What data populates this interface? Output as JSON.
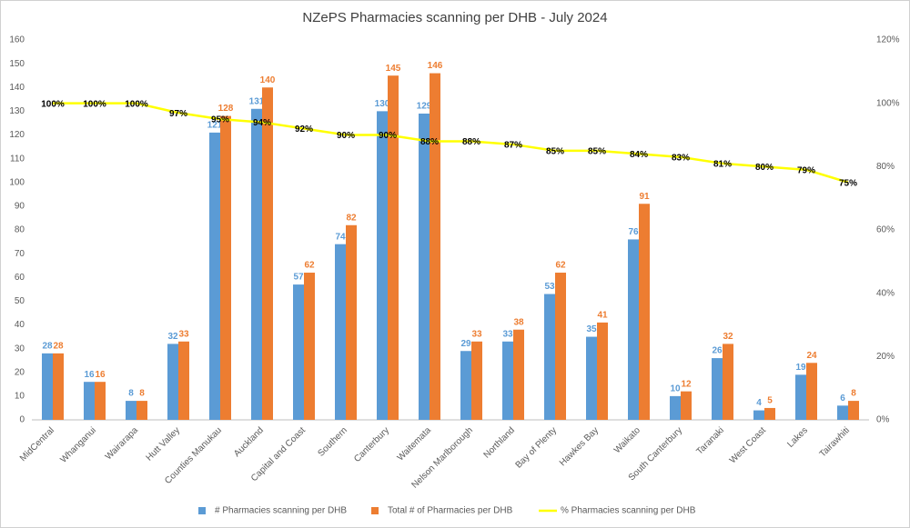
{
  "chart_data": {
    "type": "bar",
    "title": "NZePS Pharmacies scanning per DHB - July 2024",
    "categories": [
      "MidCentral",
      "Whanganui",
      "Wairarapa",
      "Hutt Valley",
      "Counties Manukau",
      "Auckland",
      "Capital and Coast",
      "Southern",
      "Canterbury",
      "Waitemata",
      "Nelson Marlborough",
      "Northland",
      "Bay of Plenty",
      "Hawkes Bay",
      "Waikato",
      "South Canterbury",
      "Taranaki",
      "West Coast",
      "Lakes",
      "Tairawhiti"
    ],
    "series": [
      {
        "name": "# Pharmacies scanning per DHB",
        "color": "#5b9bd5",
        "values": [
          28,
          16,
          8,
          32,
          121,
          131,
          57,
          74,
          130,
          129,
          29,
          33,
          53,
          35,
          76,
          10,
          26,
          4,
          19,
          6
        ]
      },
      {
        "name": "Total # of Pharmacies per DHB",
        "color": "#ed7d31",
        "values": [
          28,
          16,
          8,
          33,
          128,
          140,
          62,
          82,
          145,
          146,
          33,
          38,
          62,
          41,
          91,
          12,
          32,
          5,
          24,
          8
        ]
      },
      {
        "name": "% Pharmacies scanning per DHB",
        "color": "#ffff00",
        "type": "line",
        "axis": "y2",
        "values": [
          100,
          100,
          100,
          97,
          95,
          94,
          92,
          90,
          90,
          88,
          88,
          87,
          85,
          85,
          84,
          83,
          81,
          80,
          79,
          75
        ],
        "value_labels": [
          "100%",
          "100%",
          "100%",
          "97%",
          "95%",
          "94%",
          "92%",
          "90%",
          "90%",
          "88%",
          "88%",
          "87%",
          "85%",
          "85%",
          "84%",
          "83%",
          "81%",
          "80%",
          "79%",
          "75%"
        ]
      }
    ],
    "ylim": [
      0,
      160
    ],
    "yticks": [
      0,
      10,
      20,
      30,
      40,
      50,
      60,
      70,
      80,
      90,
      100,
      110,
      120,
      130,
      140,
      150,
      160
    ],
    "y2lim": [
      0,
      120
    ],
    "y2ticks": [
      {
        "value": 0,
        "label": "0%"
      },
      {
        "value": 20,
        "label": "20%"
      },
      {
        "value": 40,
        "label": "40%"
      },
      {
        "value": 60,
        "label": "60%"
      },
      {
        "value": 80,
        "label": "80%"
      },
      {
        "value": 100,
        "label": "100%"
      },
      {
        "value": 120,
        "label": "120%"
      }
    ],
    "grid": false,
    "legend": "bottom"
  }
}
